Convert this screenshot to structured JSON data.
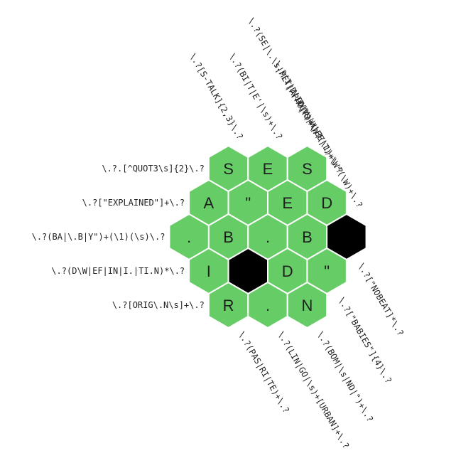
{
  "colors": {
    "cell_fill": "#66cc66",
    "blocked_fill": "#000000",
    "cell_stroke": "#ffffff",
    "text": "#1f1f1f"
  },
  "rows": [
    {
      "clue": "\\.?.[^QUOT3\\s]{2}\\.?",
      "cells": [
        {
          "letter": "S",
          "blocked": false
        },
        {
          "letter": "E",
          "blocked": false
        },
        {
          "letter": "S",
          "blocked": false
        }
      ]
    },
    {
      "clue": "\\.?[\"EXPLAINED\"]+\\.?",
      "cells": [
        {
          "letter": "A",
          "blocked": false
        },
        {
          "letter": "\"",
          "blocked": false
        },
        {
          "letter": "E",
          "blocked": false
        },
        {
          "letter": "D",
          "blocked": false
        }
      ]
    },
    {
      "clue": "\\.?(BA|\\.B|Y\")+(\\1)(\\s)\\.?",
      "cells": [
        {
          "letter": ".",
          "blocked": false
        },
        {
          "letter": "B",
          "blocked": false
        },
        {
          "letter": ".",
          "blocked": false
        },
        {
          "letter": "B",
          "blocked": false
        },
        {
          "letter": "",
          "blocked": true
        }
      ]
    },
    {
      "clue": "\\.?(D\\W|EF|IN|I.|TI.N)*\\.?",
      "cells": [
        {
          "letter": "I",
          "blocked": false
        },
        {
          "letter": "",
          "blocked": true
        },
        {
          "letter": "D",
          "blocked": false
        },
        {
          "letter": "\"",
          "blocked": false
        }
      ]
    },
    {
      "clue": "\\.?[ORIG\\.N\\s]+\\.?",
      "cells": [
        {
          "letter": "R",
          "blocked": false
        },
        {
          "letter": ".",
          "blocked": false
        },
        {
          "letter": "N",
          "blocked": false
        }
      ]
    }
  ],
  "top_clues": [
    "\\.?[S-TALK]{2,3}\\.?",
    "\\.?(BI|T|E'|\\s)+\\.?",
    "\\.?(SE|\\.\\s|MET|APHO|R)+\\.?",
    "\\.?(I|D|IO|M)+\\W?(\\1)+\\.?",
    "\\.?(\\s|W|EE|T)+\\W*(\\W)+\\.?"
  ],
  "bottom_clues": [
    "\\.?(PAS|RI|TE)+\\.?",
    "\\.?(LIN|GO|\\s)+[URBAN]+\\.?",
    "\\.?(BOM|\\s|ND|\")+\\.?",
    "\\.?[\"BABIES\"]{4}\\.?",
    "\\.?[\"NOBEAT]*\\.?"
  ]
}
